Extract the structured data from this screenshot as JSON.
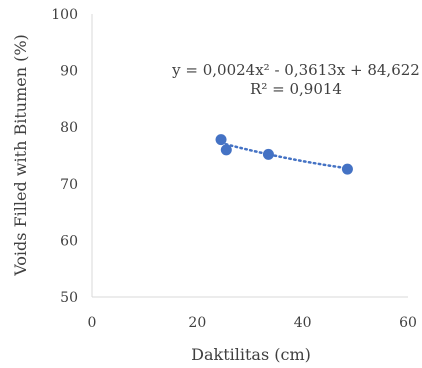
{
  "chart_data": {
    "type": "scatter",
    "xlabel": "Daktilitas (cm)",
    "ylabel": "Voids Filled with Bitumen (%)",
    "xlim": [
      0,
      60
    ],
    "ylim": [
      50,
      100
    ],
    "x_ticks": [
      "0",
      "20",
      "40",
      "60"
    ],
    "y_ticks": [
      "50",
      "60",
      "70",
      "80",
      "90",
      "100"
    ],
    "grid": false,
    "series": [
      {
        "points": [
          {
            "x": 24.5,
            "y": 77.8
          },
          {
            "x": 25.5,
            "y": 76.0
          },
          {
            "x": 33.5,
            "y": 75.2
          },
          {
            "x": 48.5,
            "y": 72.6
          }
        ]
      }
    ],
    "trendline": {
      "type": "polynomial",
      "equation": "y = 0,0024x² - 0,3613x + 84,622",
      "r_squared": "R² = 0,9014",
      "coefficients": {
        "a": 0.0024,
        "b": -0.3613,
        "c": 84.622
      },
      "style": "dotted"
    },
    "colors": {
      "marker": "#4472C4",
      "axis": "#d9d9d9",
      "text": "#404040"
    }
  }
}
